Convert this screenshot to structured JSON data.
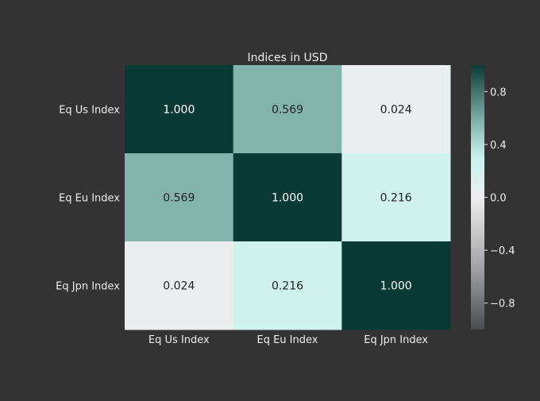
{
  "chart_data": {
    "type": "heatmap",
    "title": "Indices in USD",
    "xlabel": "",
    "ylabel": "",
    "x_categories": [
      "Eq Us Index",
      "Eq Eu Index",
      "Eq Jpn Index"
    ],
    "y_categories": [
      "Eq Us Index",
      "Eq Eu Index",
      "Eq Jpn Index"
    ],
    "values": [
      [
        1.0,
        0.569,
        0.024
      ],
      [
        0.569,
        1.0,
        0.216
      ],
      [
        0.024,
        0.216,
        1.0
      ]
    ],
    "cell_labels": [
      [
        "1.000",
        "0.569",
        "0.024"
      ],
      [
        "0.569",
        "1.000",
        "0.216"
      ],
      [
        "0.024",
        "0.216",
        "1.000"
      ]
    ],
    "colorbar": {
      "range": [
        -1,
        1
      ],
      "ticks": [
        0.8,
        0.4,
        0.0,
        -0.4,
        -0.8
      ],
      "tick_labels": [
        "0.8",
        "0.4",
        "0.0",
        "−0.4",
        "−0.8"
      ]
    },
    "colors": {
      "background": "#333333",
      "text": "#eeeeee",
      "colormap": [
        [
          -1.0,
          "#4a4d50"
        ],
        [
          -0.5,
          "#a8a8aa"
        ],
        [
          0.0,
          "#eeeeee"
        ],
        [
          0.3,
          "#c5f4ec"
        ],
        [
          0.55,
          "#88b9b1"
        ],
        [
          1.0,
          "#0a3a34"
        ]
      ],
      "label_dark": "#222222",
      "label_light": "#ffffff"
    }
  }
}
